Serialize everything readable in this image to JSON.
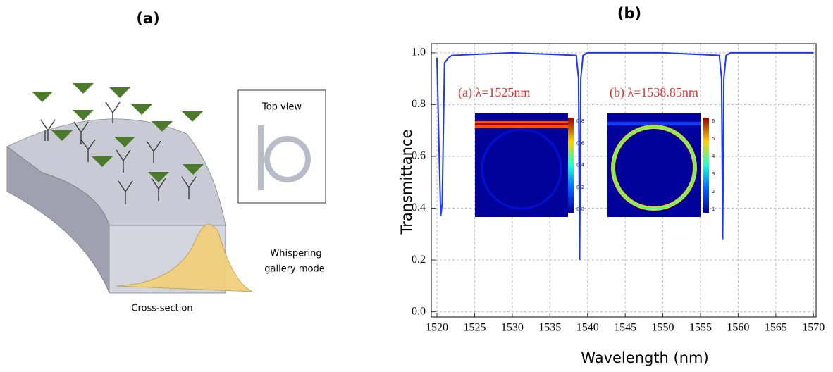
{
  "panel_a": {
    "title": "(a)",
    "top_view": "Top view",
    "mode_label": [
      "Whispering",
      "gallery mode"
    ],
    "cross_section": "Cross-section"
  },
  "chart_data": {
    "type": "line",
    "title": "(b)",
    "x_label": "Wavelength (nm)",
    "y_label": "Transmittance",
    "x": [
      1520,
      1520.3,
      1520.5,
      1520.7,
      1521,
      1521.5,
      1522,
      1530,
      1538.5,
      1538.8,
      1538.95,
      1539.1,
      1539.4,
      1540,
      1550,
      1557.5,
      1557.8,
      1557.95,
      1558.1,
      1558.4,
      1559,
      1570
    ],
    "series": [
      {
        "color": "#1f35ff",
        "values": [
          0.98,
          0.6,
          0.37,
          0.42,
          0.96,
          0.98,
          0.99,
          1.0,
          0.99,
          0.9,
          0.2,
          0.9,
          0.99,
          1.0,
          1.0,
          0.99,
          0.9,
          0.28,
          0.9,
          0.99,
          1.0,
          1.0
        ]
      }
    ],
    "xlim": [
      1519.25,
      1570.35
    ],
    "ylim": [
      -0.02,
      1.035
    ],
    "xticks": [
      1520,
      1525,
      1530,
      1535,
      1540,
      1545,
      1550,
      1555,
      1560,
      1565,
      1570
    ],
    "yticks": [
      {
        "value": 0,
        "label": "0.0"
      },
      0.2,
      0.4,
      0.6,
      0.8,
      {
        "value": 1,
        "label": "1.0"
      }
    ],
    "grid": true,
    "annotations": [
      "(a) λ=1525nm",
      "(b) λ=1538.85nm"
    ],
    "inset_colorbars": [
      [
        "0.8",
        "0.6",
        "0.4",
        "0.2",
        "0.0"
      ],
      [
        "6",
        "5",
        "4",
        "3",
        "2",
        "1"
      ]
    ]
  }
}
